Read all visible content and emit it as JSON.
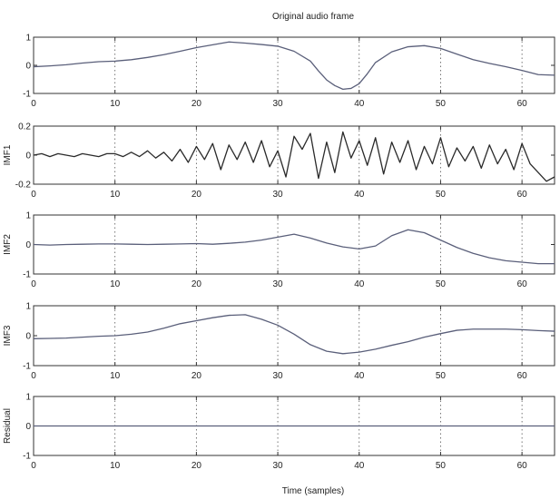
{
  "chart_data": {
    "type": "line",
    "title": "Original audio frame",
    "xlabel": "Time (samples)",
    "xlim": [
      0,
      64
    ],
    "xticks": [
      0,
      10,
      20,
      30,
      40,
      50,
      60
    ],
    "grid": "vertical dotted lines at x ticks",
    "line_color": "#5a5f7a",
    "imf1_line_color": "#2a2a2a",
    "panels": [
      {
        "id": "original",
        "ylabel": "",
        "ylim": [
          -1,
          1
        ],
        "yticks": [
          "1",
          "0",
          "-1"
        ],
        "x": [
          0,
          2,
          4,
          6,
          8,
          10,
          12,
          14,
          16,
          18,
          20,
          22,
          24,
          26,
          28,
          30,
          32,
          34,
          35,
          36,
          37,
          38,
          39,
          40,
          41,
          42,
          44,
          46,
          48,
          50,
          52,
          54,
          56,
          58,
          60,
          62,
          64
        ],
        "values": [
          -0.05,
          -0.02,
          0.02,
          0.08,
          0.13,
          0.15,
          0.2,
          0.28,
          0.38,
          0.5,
          0.63,
          0.73,
          0.83,
          0.79,
          0.74,
          0.68,
          0.5,
          0.15,
          -0.2,
          -0.52,
          -0.72,
          -0.85,
          -0.82,
          -0.65,
          -0.3,
          0.1,
          0.48,
          0.66,
          0.7,
          0.6,
          0.4,
          0.2,
          0.07,
          -0.05,
          -0.18,
          -0.33,
          -0.35
        ]
      },
      {
        "id": "imf1",
        "ylabel": "IMF1",
        "ylim": [
          -0.2,
          0.2
        ],
        "yticks": [
          "0.2",
          "0",
          "-0.2"
        ],
        "x": [
          0,
          1,
          2,
          3,
          4,
          5,
          6,
          7,
          8,
          9,
          10,
          11,
          12,
          13,
          14,
          15,
          16,
          17,
          18,
          19,
          20,
          21,
          22,
          23,
          24,
          25,
          26,
          27,
          28,
          29,
          30,
          31,
          32,
          33,
          34,
          35,
          36,
          37,
          38,
          39,
          40,
          41,
          42,
          43,
          44,
          45,
          46,
          47,
          48,
          49,
          50,
          51,
          52,
          53,
          54,
          55,
          56,
          57,
          58,
          59,
          60,
          61,
          62,
          63,
          64
        ],
        "values": [
          0.0,
          0.01,
          -0.01,
          0.01,
          0.0,
          -0.01,
          0.01,
          0.0,
          -0.01,
          0.01,
          0.01,
          -0.01,
          0.02,
          -0.01,
          0.03,
          -0.02,
          0.02,
          -0.04,
          0.04,
          -0.05,
          0.06,
          -0.03,
          0.08,
          -0.1,
          0.07,
          -0.03,
          0.09,
          -0.05,
          0.1,
          -0.08,
          0.03,
          -0.15,
          0.13,
          0.04,
          0.15,
          -0.16,
          0.09,
          -0.12,
          0.16,
          -0.02,
          0.1,
          -0.07,
          0.12,
          -0.13,
          0.09,
          -0.05,
          0.1,
          -0.1,
          0.06,
          -0.06,
          0.12,
          -0.08,
          0.05,
          -0.04,
          0.06,
          -0.09,
          0.07,
          -0.06,
          0.04,
          -0.1,
          0.08,
          -0.06,
          -0.12,
          -0.18,
          -0.15
        ]
      },
      {
        "id": "imf2",
        "ylabel": "IMF2",
        "ylim": [
          -1,
          1
        ],
        "yticks": [
          "1",
          "0",
          "-1"
        ],
        "x": [
          0,
          2,
          4,
          6,
          8,
          10,
          12,
          14,
          16,
          18,
          20,
          22,
          24,
          26,
          28,
          30,
          32,
          34,
          36,
          38,
          40,
          42,
          44,
          46,
          48,
          50,
          52,
          54,
          56,
          58,
          60,
          62,
          64
        ],
        "values": [
          0.0,
          -0.02,
          0.0,
          0.01,
          0.02,
          0.02,
          0.01,
          0.0,
          0.01,
          0.02,
          0.03,
          0.01,
          0.04,
          0.08,
          0.15,
          0.25,
          0.35,
          0.22,
          0.05,
          -0.08,
          -0.15,
          -0.05,
          0.3,
          0.5,
          0.4,
          0.15,
          -0.1,
          -0.3,
          -0.45,
          -0.55,
          -0.6,
          -0.65,
          -0.65
        ]
      },
      {
        "id": "imf3",
        "ylabel": "IMF3",
        "ylim": [
          -1,
          1
        ],
        "yticks": [
          "1",
          "0",
          "-1"
        ],
        "x": [
          0,
          2,
          4,
          6,
          8,
          10,
          12,
          14,
          16,
          18,
          20,
          22,
          24,
          26,
          28,
          30,
          32,
          34,
          36,
          38,
          40,
          42,
          44,
          46,
          48,
          50,
          52,
          54,
          56,
          58,
          60,
          62,
          64
        ],
        "values": [
          -0.1,
          -0.09,
          -0.08,
          -0.05,
          -0.02,
          0.0,
          0.05,
          0.12,
          0.25,
          0.4,
          0.5,
          0.6,
          0.68,
          0.7,
          0.55,
          0.35,
          0.05,
          -0.3,
          -0.52,
          -0.6,
          -0.55,
          -0.45,
          -0.32,
          -0.2,
          -0.05,
          0.07,
          0.18,
          0.22,
          0.22,
          0.22,
          0.2,
          0.17,
          0.15
        ]
      },
      {
        "id": "residual",
        "ylabel": "Residual",
        "ylim": [
          -1,
          1
        ],
        "yticks": [
          "1",
          "0",
          "-1"
        ],
        "x": [
          0,
          64
        ],
        "values": [
          0.0,
          0.0
        ]
      }
    ]
  }
}
